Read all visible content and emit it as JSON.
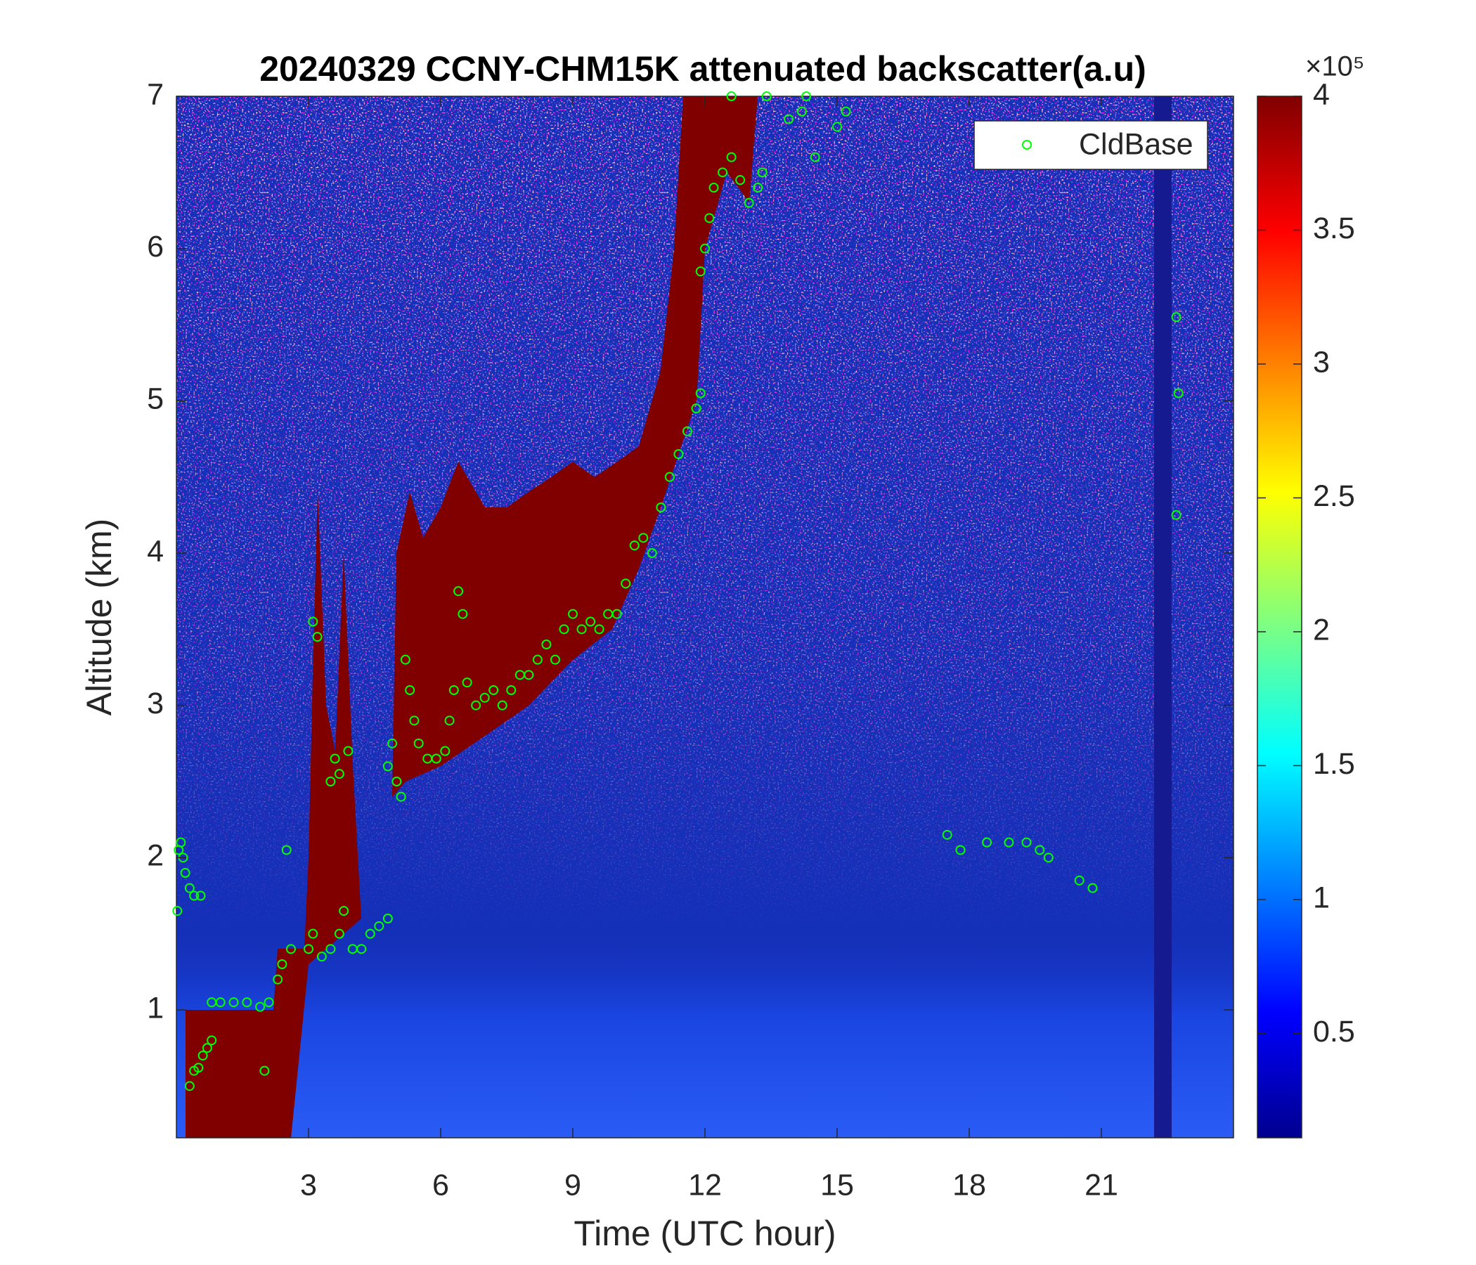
{
  "chart_data": {
    "type": "scatter",
    "title": "20240329 CCNY-CHM15K attenuated backscatter(a.u)",
    "x_label": "Time (UTC hour)",
    "y_label": "Altitude (km)",
    "xlim": [
      0,
      24
    ],
    "ylim": [
      0.16,
      7
    ],
    "xticks": [
      3,
      6,
      9,
      12,
      15,
      18,
      21
    ],
    "yticks": [
      1,
      2,
      3,
      4,
      5,
      6,
      7
    ],
    "legend_position": "upper right",
    "colorbar": {
      "clim": [
        0.11,
        4
      ],
      "ticks": [
        0.5,
        1,
        1.5,
        2,
        2.5,
        3,
        3.5,
        4
      ],
      "scale_label": "×10⁵",
      "colormap": "jet"
    },
    "series": [
      {
        "name": "CldBase",
        "color": "#00ff00",
        "x": [
          0.02,
          0.05,
          0.1,
          0.15,
          0.2,
          0.3,
          0.4,
          0.55,
          0.3,
          0.4,
          0.5,
          0.6,
          0.7,
          0.8,
          0.8,
          1.0,
          1.3,
          1.6,
          1.9,
          2.1,
          2.3,
          2.4,
          2.6,
          2.0,
          2.5,
          3.0,
          3.1,
          3.1,
          3.2,
          3.3,
          3.5,
          3.5,
          3.6,
          3.7,
          3.7,
          3.8,
          3.9,
          4.0,
          4.2,
          4.4,
          4.6,
          4.8,
          4.8,
          4.9,
          5.0,
          5.1,
          5.2,
          5.3,
          5.4,
          5.5,
          5.7,
          5.9,
          6.1,
          6.2,
          6.3,
          6.4,
          6.5,
          6.6,
          6.8,
          7.0,
          7.2,
          7.4,
          7.6,
          7.8,
          8.0,
          8.2,
          8.4,
          8.6,
          8.8,
          9.0,
          9.2,
          9.4,
          9.6,
          9.8,
          10.0,
          10.2,
          10.4,
          10.6,
          10.8,
          11.0,
          11.2,
          11.4,
          11.6,
          11.8,
          11.9,
          11.9,
          12.0,
          12.1,
          12.2,
          12.4,
          12.6,
          12.8,
          13.0,
          13.2,
          13.3,
          12.6,
          13.4,
          13.9,
          14.2,
          14.3,
          14.5,
          15.0,
          15.2,
          17.5,
          17.8,
          18.4,
          18.9,
          19.3,
          19.6,
          19.8,
          20.5,
          20.8,
          22.7,
          22.75,
          22.7
        ],
        "values": [
          1.65,
          2.05,
          2.1,
          2.0,
          1.9,
          1.8,
          1.75,
          1.75,
          0.5,
          0.6,
          0.62,
          0.7,
          0.75,
          0.8,
          1.05,
          1.05,
          1.05,
          1.05,
          1.02,
          1.05,
          1.2,
          1.3,
          1.4,
          0.6,
          2.05,
          1.4,
          1.5,
          3.55,
          3.45,
          1.35,
          1.4,
          2.5,
          2.65,
          1.5,
          2.55,
          1.65,
          2.7,
          1.4,
          1.4,
          1.5,
          1.55,
          1.6,
          2.6,
          2.75,
          2.5,
          2.4,
          3.3,
          3.1,
          2.9,
          2.75,
          2.65,
          2.65,
          2.7,
          2.9,
          3.1,
          3.75,
          3.6,
          3.15,
          3.0,
          3.05,
          3.1,
          3.0,
          3.1,
          3.2,
          3.2,
          3.3,
          3.4,
          3.3,
          3.5,
          3.6,
          3.5,
          3.55,
          3.5,
          3.6,
          3.6,
          3.8,
          4.05,
          4.1,
          4.0,
          4.3,
          4.5,
          4.65,
          4.8,
          4.95,
          5.05,
          5.85,
          6.0,
          6.2,
          6.4,
          6.5,
          6.6,
          6.45,
          6.3,
          6.4,
          6.5,
          7.0,
          7.0,
          6.85,
          6.9,
          7.0,
          6.6,
          6.8,
          6.9,
          2.15,
          2.05,
          2.1,
          2.1,
          2.1,
          2.05,
          2.0,
          1.85,
          1.8,
          5.55,
          5.05,
          4.25
        ]
      }
    ]
  }
}
